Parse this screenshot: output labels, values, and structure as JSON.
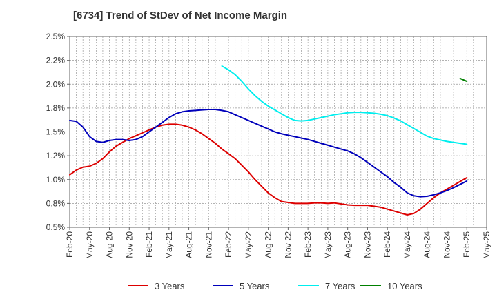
{
  "chart_data": {
    "type": "line",
    "title": "[6734]  Trend of StDev of Net Income Margin",
    "xlabel": "",
    "ylabel": "",
    "x_ticks": [
      "Feb-20",
      "May-20",
      "Aug-20",
      "Nov-20",
      "Feb-21",
      "May-21",
      "Aug-21",
      "Nov-21",
      "Feb-22",
      "May-22",
      "Aug-22",
      "Nov-22",
      "Feb-23",
      "May-23",
      "Aug-23",
      "Nov-23",
      "Feb-24",
      "May-24",
      "Aug-24",
      "Nov-24",
      "Feb-25",
      "May-25"
    ],
    "y_ticks": [
      "0.5%",
      "0.8%",
      "1.0%",
      "1.2%",
      "1.5%",
      "1.8%",
      "2.0%",
      "2.2%",
      "2.5%"
    ],
    "ylim": [
      0.5,
      2.5
    ],
    "y_unit": "%",
    "grid": true,
    "legend_position": "bottom",
    "series": [
      {
        "name": "3 Years",
        "color": "#dd0000",
        "x": [
          "2020-02",
          "2020-03",
          "2020-04",
          "2020-05",
          "2020-06",
          "2020-07",
          "2020-08",
          "2020-09",
          "2020-10",
          "2020-11",
          "2020-12",
          "2021-01",
          "2021-02",
          "2021-03",
          "2021-04",
          "2021-05",
          "2021-06",
          "2021-07",
          "2021-08",
          "2021-09",
          "2021-10",
          "2021-11",
          "2021-12",
          "2022-01",
          "2022-02",
          "2022-03",
          "2022-04",
          "2022-05",
          "2022-06",
          "2022-07",
          "2022-08",
          "2022-09",
          "2022-10",
          "2022-11",
          "2022-12",
          "2023-01",
          "2023-02",
          "2023-03",
          "2023-04",
          "2023-05",
          "2023-06",
          "2023-07",
          "2023-08",
          "2023-09",
          "2023-10",
          "2023-11",
          "2023-12",
          "2024-01",
          "2024-02",
          "2024-03",
          "2024-04",
          "2024-05",
          "2024-06",
          "2024-07",
          "2024-08",
          "2024-09",
          "2024-10",
          "2024-11",
          "2024-12",
          "2025-01",
          "2025-02"
        ],
        "values": [
          1.05,
          1.1,
          1.13,
          1.14,
          1.17,
          1.22,
          1.29,
          1.35,
          1.39,
          1.43,
          1.46,
          1.49,
          1.52,
          1.55,
          1.57,
          1.58,
          1.58,
          1.57,
          1.55,
          1.52,
          1.48,
          1.43,
          1.38,
          1.32,
          1.27,
          1.22,
          1.15,
          1.08,
          1.0,
          0.93,
          0.86,
          0.81,
          0.77,
          0.76,
          0.75,
          0.75,
          0.75,
          0.755,
          0.755,
          0.75,
          0.755,
          0.745,
          0.735,
          0.73,
          0.73,
          0.73,
          0.72,
          0.71,
          0.69,
          0.67,
          0.65,
          0.63,
          0.645,
          0.69,
          0.75,
          0.81,
          0.86,
          0.9,
          0.94,
          0.98,
          1.02
        ]
      },
      {
        "name": "5 Years",
        "color": "#0000bb",
        "x": [
          "2020-02",
          "2020-03",
          "2020-04",
          "2020-05",
          "2020-06",
          "2020-07",
          "2020-08",
          "2020-09",
          "2020-10",
          "2020-11",
          "2020-12",
          "2021-01",
          "2021-02",
          "2021-03",
          "2021-04",
          "2021-05",
          "2021-06",
          "2021-07",
          "2021-08",
          "2021-09",
          "2021-10",
          "2021-11",
          "2021-12",
          "2022-01",
          "2022-02",
          "2022-03",
          "2022-04",
          "2022-05",
          "2022-06",
          "2022-07",
          "2022-08",
          "2022-09",
          "2022-10",
          "2022-11",
          "2022-12",
          "2023-01",
          "2023-02",
          "2023-03",
          "2023-04",
          "2023-05",
          "2023-06",
          "2023-07",
          "2023-08",
          "2023-09",
          "2023-10",
          "2023-11",
          "2023-12",
          "2024-01",
          "2024-02",
          "2024-03",
          "2024-04",
          "2024-05",
          "2024-06",
          "2024-07",
          "2024-08",
          "2024-09",
          "2024-10",
          "2024-11",
          "2024-12",
          "2025-01",
          "2025-02"
        ],
        "values": [
          1.62,
          1.61,
          1.55,
          1.45,
          1.4,
          1.39,
          1.41,
          1.42,
          1.42,
          1.41,
          1.42,
          1.45,
          1.5,
          1.55,
          1.6,
          1.65,
          1.69,
          1.71,
          1.72,
          1.725,
          1.73,
          1.735,
          1.735,
          1.725,
          1.71,
          1.68,
          1.65,
          1.62,
          1.59,
          1.56,
          1.53,
          1.5,
          1.48,
          1.465,
          1.45,
          1.435,
          1.42,
          1.4,
          1.38,
          1.36,
          1.34,
          1.32,
          1.3,
          1.27,
          1.23,
          1.18,
          1.13,
          1.08,
          1.03,
          0.97,
          0.92,
          0.86,
          0.83,
          0.82,
          0.825,
          0.84,
          0.86,
          0.885,
          0.915,
          0.95,
          0.985
        ]
      },
      {
        "name": "7 Years",
        "color": "#00eeee",
        "x": [
          "2022-01",
          "2022-02",
          "2022-03",
          "2022-04",
          "2022-05",
          "2022-06",
          "2022-07",
          "2022-08",
          "2022-09",
          "2022-10",
          "2022-11",
          "2022-12",
          "2023-01",
          "2023-02",
          "2023-03",
          "2023-04",
          "2023-05",
          "2023-06",
          "2023-07",
          "2023-08",
          "2023-09",
          "2023-10",
          "2023-11",
          "2023-12",
          "2024-01",
          "2024-02",
          "2024-03",
          "2024-04",
          "2024-05",
          "2024-06",
          "2024-07",
          "2024-08",
          "2024-09",
          "2024-10",
          "2024-11",
          "2024-12",
          "2025-01",
          "2025-02"
        ],
        "values": [
          2.19,
          2.15,
          2.1,
          2.03,
          1.95,
          1.88,
          1.82,
          1.77,
          1.73,
          1.69,
          1.65,
          1.62,
          1.615,
          1.62,
          1.635,
          1.65,
          1.665,
          1.68,
          1.69,
          1.7,
          1.705,
          1.705,
          1.7,
          1.695,
          1.685,
          1.67,
          1.645,
          1.615,
          1.575,
          1.535,
          1.495,
          1.455,
          1.43,
          1.415,
          1.4,
          1.39,
          1.38,
          1.37
        ]
      },
      {
        "name": "10 Years",
        "color": "#008000",
        "x": [
          "2025-01",
          "2025-02"
        ],
        "values": [
          2.06,
          2.03
        ]
      }
    ]
  }
}
